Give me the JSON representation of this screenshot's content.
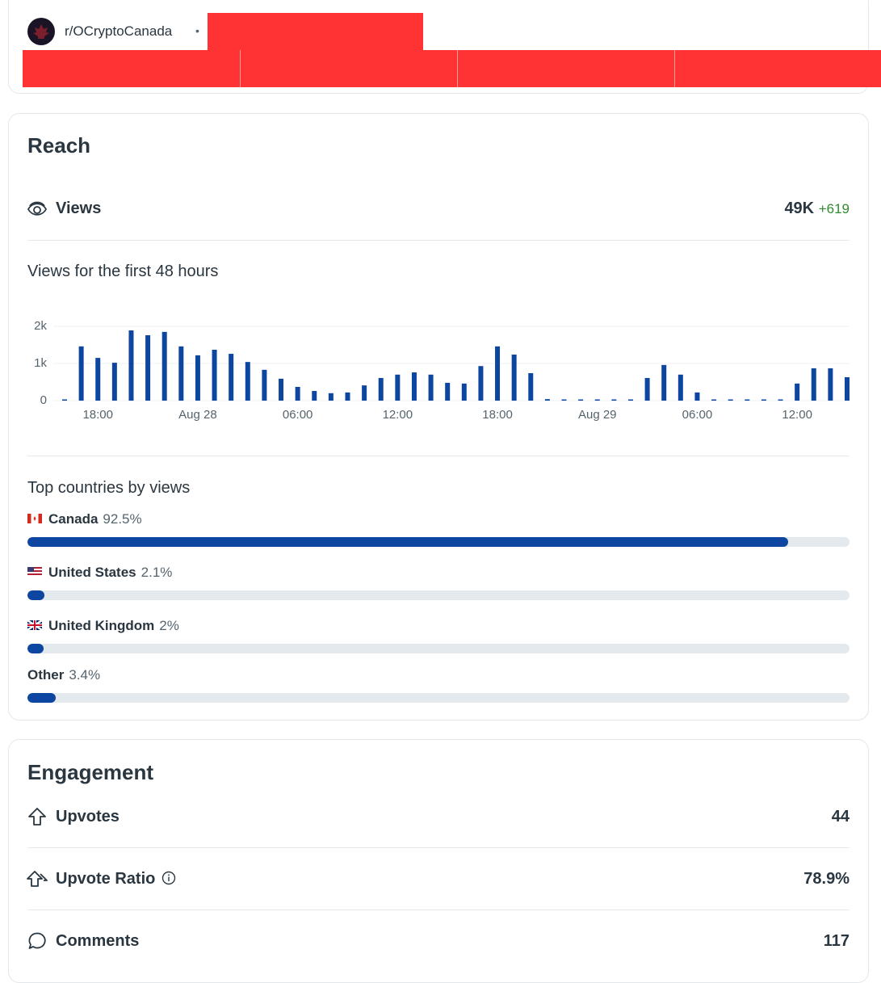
{
  "header": {
    "community": "r/OCryptoCanada",
    "separator": "•"
  },
  "reach": {
    "title": "Reach",
    "views_label": "Views",
    "views_value": "49K",
    "views_delta": "+619"
  },
  "chart_data": {
    "type": "bar",
    "title": "Views for the first 48 hours",
    "categories": [
      null,
      null,
      "18:00",
      null,
      null,
      null,
      null,
      null,
      "Aug 28",
      null,
      null,
      null,
      null,
      null,
      "06:00",
      null,
      null,
      null,
      null,
      null,
      "12:00",
      null,
      null,
      null,
      null,
      null,
      "18:00",
      null,
      null,
      null,
      null,
      null,
      "Aug 29",
      null,
      null,
      null,
      null,
      null,
      "06:00",
      null,
      null,
      null,
      null,
      null,
      "12:00",
      null,
      null,
      null
    ],
    "values": [
      0,
      1460,
      1150,
      1020,
      1890,
      1760,
      1850,
      1460,
      1220,
      1370,
      1260,
      1040,
      830,
      590,
      370,
      260,
      200,
      220,
      410,
      610,
      700,
      760,
      700,
      480,
      460,
      930,
      1460,
      1240,
      740,
      40,
      0,
      0,
      0,
      0,
      0,
      610,
      960,
      700,
      220,
      0,
      0,
      0,
      0,
      0,
      460,
      870,
      870,
      630
    ],
    "color": "#0d46a0",
    "ylim": [
      0,
      2000
    ],
    "yticks": [
      0,
      {
        "value": 1000,
        "label": "1k"
      },
      {
        "value": 2000,
        "label": "2k"
      }
    ],
    "grid": true
  },
  "countries": {
    "title": "Top countries by views",
    "color": "#0d46a0",
    "items": [
      {
        "name": "Canada",
        "value": 92.5,
        "value_label": "92.5%"
      },
      {
        "name": "United States",
        "value": 2.1,
        "value_label": "2.1%"
      },
      {
        "name": "United Kingdom",
        "value": 2,
        "value_label": "2%"
      },
      {
        "name": "Other",
        "value": 3.4,
        "value_label": "3.4%"
      }
    ]
  },
  "engagement": {
    "title": "Engagement",
    "rows": [
      {
        "label": "Upvotes",
        "value": "44"
      },
      {
        "label": "Upvote Ratio",
        "value": "78.9%"
      },
      {
        "label": "Comments",
        "value": "117"
      }
    ]
  }
}
